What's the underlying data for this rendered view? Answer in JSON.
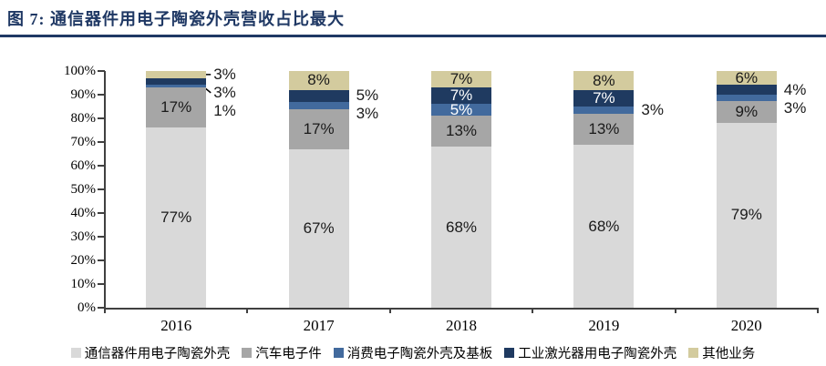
{
  "title": "图 7:  通信器件用电子陶瓷外壳营收占比最大",
  "colors": {
    "title": "#1f3864",
    "divider": "#1f3864",
    "axis": "#404040",
    "label_dark": "#1a1a1a",
    "label_white": "#ffffff"
  },
  "chart_data": {
    "type": "bar",
    "subtype": "stacked-100-percent",
    "title": "图 7:  通信器件用电子陶瓷外壳营收占比最大",
    "categories": [
      "2016",
      "2017",
      "2018",
      "2019",
      "2020"
    ],
    "series": [
      {
        "name": "通信器件用电子陶瓷外壳",
        "color": "#d9d9d9",
        "values": [
          77,
          67,
          68,
          68,
          79
        ]
      },
      {
        "name": "汽车电子件",
        "color": "#a6a6a6",
        "values": [
          17,
          17,
          13,
          13,
          9
        ]
      },
      {
        "name": "消费电子陶瓷外壳及基板",
        "color": "#426a9d",
        "values": [
          1,
          3,
          5,
          3,
          3
        ]
      },
      {
        "name": "工业激光器用电子陶瓷外壳",
        "color": "#1f3a60",
        "values": [
          3,
          5,
          7,
          7,
          4
        ]
      },
      {
        "name": "其他业务",
        "color": "#d3cb9e",
        "values": [
          3,
          8,
          7,
          8,
          6
        ]
      }
    ],
    "label_placement": [
      [
        "in",
        "in",
        "in",
        "in",
        "in"
      ],
      [
        "in",
        "in",
        "in",
        "in",
        "in"
      ],
      [
        "out",
        "out",
        "in-white",
        "out",
        "out"
      ],
      [
        "out-leader",
        "out",
        "in-white",
        "in-white",
        "out"
      ],
      [
        "out-leader",
        "in",
        "in",
        "in",
        "in"
      ]
    ],
    "value_suffix": "%",
    "y_ticks": [
      "100%",
      "90%",
      "80%",
      "70%",
      "60%",
      "50%",
      "40%",
      "30%",
      "20%",
      "10%",
      "0%"
    ],
    "ylim": [
      0,
      100
    ],
    "grid": false,
    "legend_position": "bottom"
  }
}
